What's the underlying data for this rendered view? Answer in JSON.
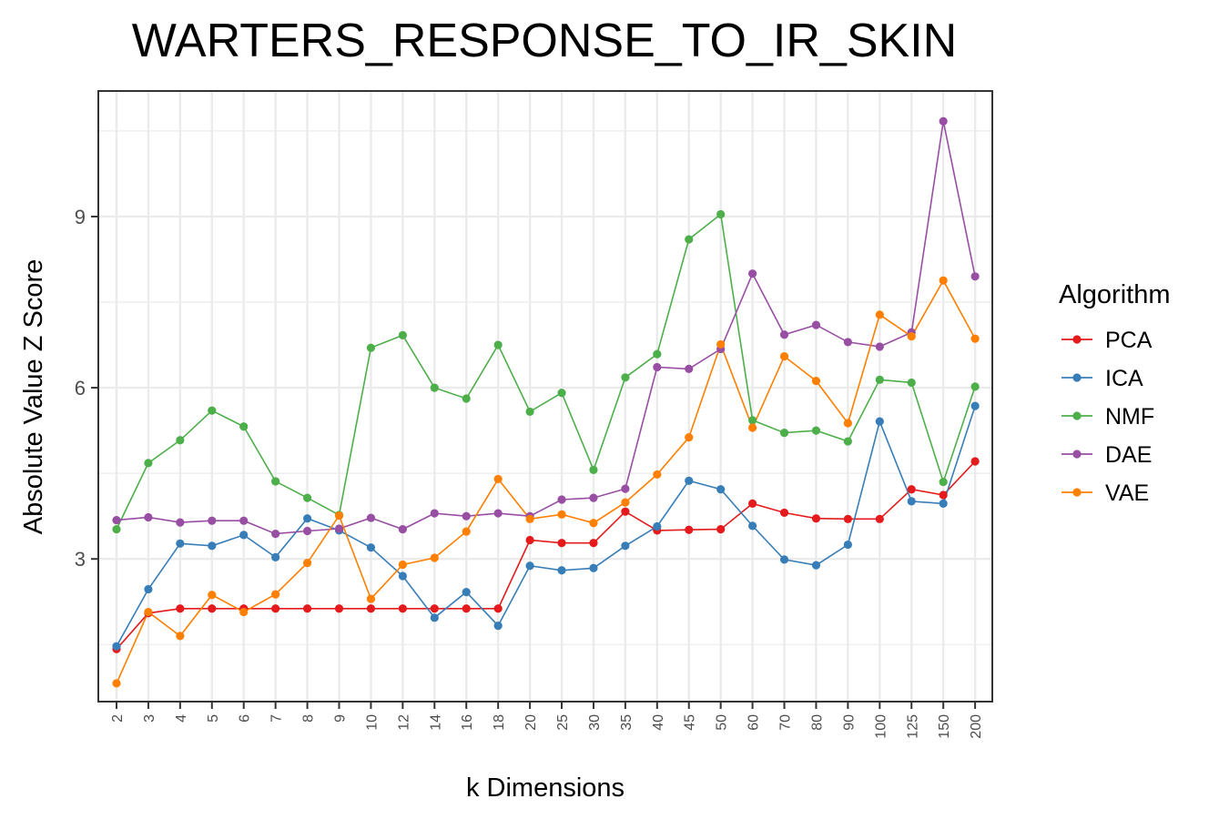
{
  "chart_data": {
    "type": "line",
    "title": "WARTERS_RESPONSE_TO_IR_SKIN",
    "xlabel": "k Dimensions",
    "ylabel": "Absolute Value Z Score",
    "categories": [
      "2",
      "3",
      "4",
      "5",
      "6",
      "7",
      "8",
      "9",
      "10",
      "12",
      "14",
      "16",
      "18",
      "20",
      "25",
      "30",
      "35",
      "40",
      "45",
      "50",
      "60",
      "70",
      "80",
      "90",
      "100",
      "125",
      "150",
      "200"
    ],
    "ylim": [
      0.5,
      11.2
    ],
    "yticks": [
      3,
      6,
      9
    ],
    "grid": true,
    "legend_title": "Algorithm",
    "legend_position": "right",
    "series": [
      {
        "name": "PCA",
        "color": "#e41a1c",
        "values": [
          1.42,
          2.05,
          2.13,
          2.13,
          2.13,
          2.13,
          2.13,
          2.13,
          2.13,
          2.13,
          2.13,
          2.13,
          2.13,
          3.33,
          3.28,
          3.28,
          3.83,
          3.5,
          3.51,
          3.52,
          3.97,
          3.81,
          3.71,
          3.7,
          3.7,
          4.22,
          4.12,
          4.71
        ]
      },
      {
        "name": "ICA",
        "color": "#377eb8",
        "values": [
          1.47,
          2.47,
          3.27,
          3.23,
          3.42,
          3.03,
          3.71,
          3.5,
          3.2,
          2.7,
          1.97,
          2.42,
          1.83,
          2.88,
          2.8,
          2.84,
          3.23,
          3.57,
          4.37,
          4.22,
          3.58,
          2.99,
          2.89,
          3.25,
          5.41,
          4.01,
          3.97,
          5.68
        ]
      },
      {
        "name": "NMF",
        "color": "#4daf4a",
        "values": [
          3.52,
          4.68,
          5.08,
          5.6,
          5.32,
          4.36,
          4.07,
          3.77,
          6.7,
          6.92,
          6.0,
          5.81,
          6.75,
          5.58,
          5.91,
          4.56,
          6.18,
          6.59,
          8.6,
          9.04,
          5.43,
          5.21,
          5.25,
          5.06,
          6.14,
          6.09,
          4.35,
          6.02
        ]
      },
      {
        "name": "DAE",
        "color": "#984ea3",
        "values": [
          3.68,
          3.73,
          3.64,
          3.67,
          3.67,
          3.44,
          3.49,
          3.53,
          3.72,
          3.52,
          3.8,
          3.75,
          3.8,
          3.75,
          4.04,
          4.07,
          4.23,
          6.36,
          6.33,
          6.68,
          8.0,
          6.93,
          7.1,
          6.8,
          6.72,
          6.97,
          10.67,
          7.95
        ]
      },
      {
        "name": "VAE",
        "color": "#ff7f00",
        "values": [
          0.82,
          2.07,
          1.65,
          2.37,
          2.07,
          2.38,
          2.93,
          3.76,
          2.3,
          2.9,
          3.02,
          3.48,
          4.4,
          3.7,
          3.78,
          3.63,
          3.99,
          4.48,
          5.13,
          6.76,
          5.3,
          6.55,
          6.12,
          5.38,
          7.28,
          6.9,
          7.88,
          6.86
        ]
      }
    ]
  }
}
